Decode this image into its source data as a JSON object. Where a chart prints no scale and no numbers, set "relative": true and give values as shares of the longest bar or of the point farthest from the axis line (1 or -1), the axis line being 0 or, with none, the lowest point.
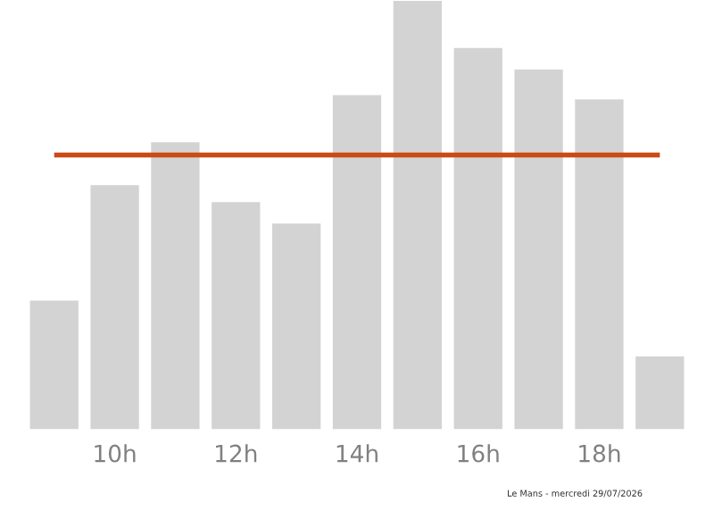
{
  "chart_data": {
    "type": "bar",
    "relative": true,
    "categories": [
      null,
      "10h",
      null,
      "12h",
      null,
      "14h",
      null,
      "16h",
      null,
      "18h",
      null
    ],
    "values": [
      0.3,
      0.57,
      0.67,
      0.53,
      0.48,
      0.78,
      1,
      0.89,
      0.84,
      0.77,
      0.17
    ],
    "color": "#d3d3d3",
    "ref_lines": [
      {
        "axis": "y",
        "value": 0.64,
        "color": "#cc4a14"
      }
    ],
    "annotations": [
      "Le Mans - mercredi 29/07/2026"
    ],
    "grid": false,
    "legend": false
  }
}
